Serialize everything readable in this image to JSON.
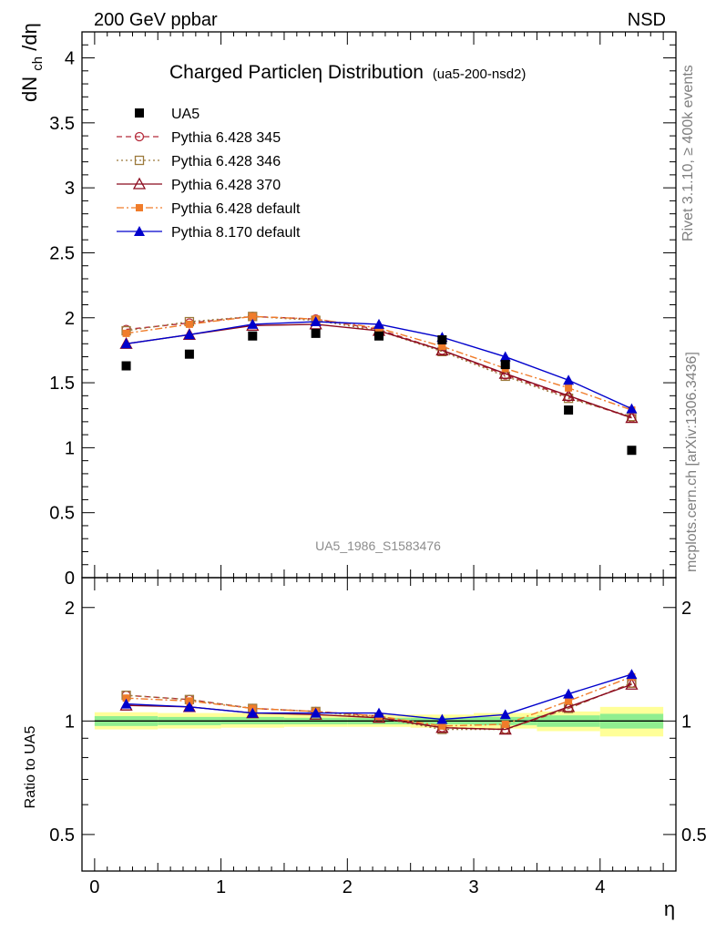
{
  "header": {
    "energy_label": "200 GeV ppbar",
    "process_label": "NSD"
  },
  "side_text": {
    "rivet": "Rivet 3.1.10, ≥ 400k events",
    "mcplots": "mcplots.cern.ch [arXiv:1306.3436]"
  },
  "chart_data": [
    {
      "type": "line",
      "panel": "main",
      "title": "Charged Particleη Distribution",
      "subtitle": "(ua5-200-nsd2)",
      "xlabel": "",
      "ylabel": "dNch/dη",
      "ylabel_parts": {
        "main": "dN",
        "sub": "ch",
        "tail": "/dη"
      },
      "watermark": "UA5_1986_S1583476",
      "xlim": [
        -0.1,
        4.6
      ],
      "ylim": [
        0,
        4.2
      ],
      "yticks": [
        0,
        0.5,
        1,
        1.5,
        2,
        2.5,
        3,
        3.5,
        4
      ],
      "ytick_labels": [
        "0",
        "0.5",
        "1",
        "1.5",
        "2",
        "2.5",
        "3",
        "3.5",
        "4"
      ],
      "x": [
        0.25,
        0.75,
        1.25,
        1.75,
        2.25,
        2.75,
        3.25,
        3.75,
        4.25
      ],
      "legend_position": "top-left",
      "series": [
        {
          "name": "UA5",
          "color": "#000000",
          "marker": "square",
          "line": "none",
          "values": [
            1.63,
            1.72,
            1.86,
            1.88,
            1.86,
            1.83,
            1.64,
            1.29,
            0.98
          ]
        },
        {
          "name": "Pythia 6.428 345",
          "color": "#b52a3a",
          "marker": "open-circle",
          "line": "dashed",
          "values": [
            1.91,
            1.96,
            2.01,
            1.99,
            1.91,
            1.75,
            1.56,
            1.39,
            1.23
          ]
        },
        {
          "name": "Pythia 6.428 346",
          "color": "#9c7a3c",
          "marker": "open-square",
          "line": "dotted",
          "values": [
            1.9,
            1.97,
            2.01,
            1.98,
            1.9,
            1.74,
            1.55,
            1.38,
            1.24
          ]
        },
        {
          "name": "Pythia 6.428 370",
          "color": "#8b0a1e",
          "marker": "open-triangle",
          "line": "solid",
          "values": [
            1.8,
            1.87,
            1.94,
            1.95,
            1.9,
            1.75,
            1.57,
            1.4,
            1.23
          ]
        },
        {
          "name": "Pythia 6.428 default",
          "color": "#f07c2a",
          "marker": "filled-square-small",
          "line": "dashdot",
          "values": [
            1.88,
            1.95,
            2.01,
            1.99,
            1.92,
            1.78,
            1.61,
            1.46,
            1.29
          ]
        },
        {
          "name": "Pythia 8.170 default",
          "color": "#0000cc",
          "marker": "filled-triangle",
          "line": "solid",
          "values": [
            1.8,
            1.87,
            1.95,
            1.97,
            1.95,
            1.85,
            1.7,
            1.52,
            1.3
          ]
        }
      ]
    },
    {
      "type": "line",
      "panel": "ratio",
      "ylabel": "Ratio to UA5",
      "xlabel": "η",
      "xlim": [
        -0.1,
        4.6
      ],
      "ylim": [
        0.4,
        2.4
      ],
      "xticks": [
        0,
        1,
        2,
        3,
        4
      ],
      "xtick_labels": [
        "0",
        "1",
        "2",
        "3",
        "4"
      ],
      "yticks": [
        0.5,
        1,
        2
      ],
      "ytick_labels": [
        "0.5",
        "1",
        "2"
      ],
      "bands": [
        {
          "x0": 0.0,
          "x1": 0.5,
          "green": [
            0.97,
            1.03
          ],
          "yellow": [
            0.95,
            1.055
          ]
        },
        {
          "x0": 0.5,
          "x1": 1.0,
          "green": [
            0.975,
            1.025
          ],
          "yellow": [
            0.955,
            1.05
          ]
        },
        {
          "x0": 1.0,
          "x1": 1.5,
          "green": [
            0.98,
            1.025
          ],
          "yellow": [
            0.96,
            1.05
          ]
        },
        {
          "x0": 1.5,
          "x1": 2.0,
          "green": [
            0.98,
            1.02
          ],
          "yellow": [
            0.965,
            1.04
          ]
        },
        {
          "x0": 2.0,
          "x1": 2.5,
          "green": [
            0.98,
            1.02
          ],
          "yellow": [
            0.965,
            1.04
          ]
        },
        {
          "x0": 2.5,
          "x1": 3.0,
          "green": [
            0.98,
            1.02
          ],
          "yellow": [
            0.96,
            1.04
          ]
        },
        {
          "x0": 3.0,
          "x1": 3.5,
          "green": [
            0.975,
            1.025
          ],
          "yellow": [
            0.955,
            1.05
          ]
        },
        {
          "x0": 3.5,
          "x1": 4.0,
          "green": [
            0.965,
            1.035
          ],
          "yellow": [
            0.94,
            1.06
          ]
        },
        {
          "x0": 4.0,
          "x1": 4.5,
          "green": [
            0.955,
            1.045
          ],
          "yellow": [
            0.91,
            1.09
          ]
        }
      ],
      "series_ratio": [
        {
          "name": "Pythia 6.428 345",
          "values": [
            1.17,
            1.14,
            1.08,
            1.06,
            1.03,
            0.96,
            0.95,
            1.08,
            1.26
          ]
        },
        {
          "name": "Pythia 6.428 346",
          "values": [
            1.17,
            1.14,
            1.08,
            1.06,
            1.02,
            0.95,
            0.95,
            1.08,
            1.26
          ]
        },
        {
          "name": "Pythia 6.428 370",
          "values": [
            1.1,
            1.09,
            1.05,
            1.04,
            1.02,
            0.96,
            0.95,
            1.09,
            1.25
          ]
        },
        {
          "name": "Pythia 6.428 default",
          "values": [
            1.15,
            1.13,
            1.08,
            1.06,
            1.03,
            0.97,
            0.98,
            1.13,
            1.31
          ]
        },
        {
          "name": "Pythia 8.170 default",
          "values": [
            1.11,
            1.09,
            1.05,
            1.05,
            1.05,
            1.01,
            1.04,
            1.18,
            1.33
          ]
        }
      ]
    }
  ]
}
